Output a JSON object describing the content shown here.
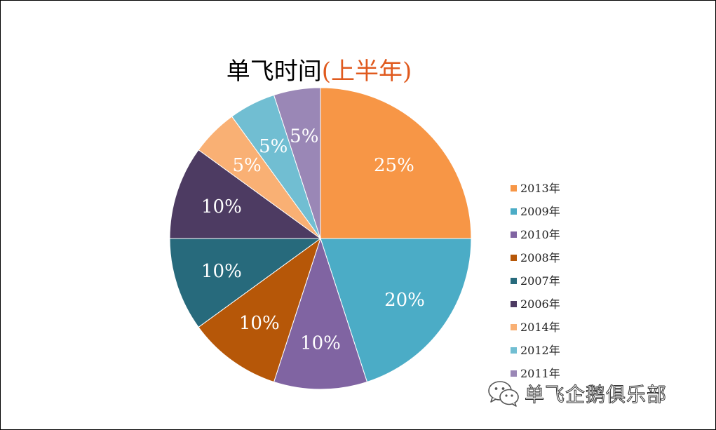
{
  "chart_data": {
    "type": "pie",
    "title": "单飞时间",
    "title_suffix": "(上半年)",
    "start_angle_deg": 0,
    "direction": "clockwise",
    "legend_position": "right",
    "slices": [
      {
        "name": "2013年",
        "value": 25,
        "label": "25%",
        "color": "#f79646"
      },
      {
        "name": "2009年",
        "value": 20,
        "label": "20%",
        "color": "#4bacc6"
      },
      {
        "name": "2010年",
        "value": 10,
        "label": "10%",
        "color": "#8064a2"
      },
      {
        "name": "2008年",
        "value": 10,
        "label": "10%",
        "color": "#b65708"
      },
      {
        "name": "2007年",
        "value": 10,
        "label": "10%",
        "color": "#276a7c"
      },
      {
        "name": "2006年",
        "value": 10,
        "label": "10%",
        "color": "#4d3b62"
      },
      {
        "name": "2014年",
        "value": 5,
        "label": "5%",
        "color": "#f9b074"
      },
      {
        "name": "2012年",
        "value": 5,
        "label": "5%",
        "color": "#71bed2"
      },
      {
        "name": "2011年",
        "value": 5,
        "label": "5%",
        "color": "#9a87b6"
      }
    ]
  },
  "watermark": {
    "text": "单飞企鹅俱乐部",
    "icon": "wechat-icon"
  }
}
